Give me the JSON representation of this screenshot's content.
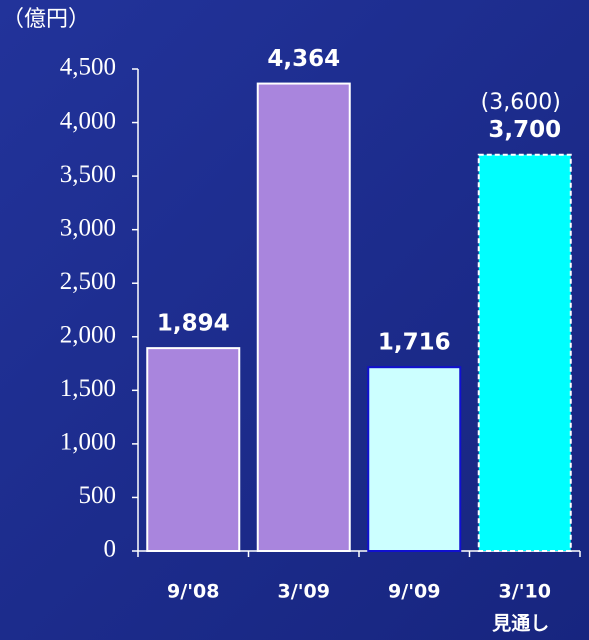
{
  "chart_data": {
    "type": "bar",
    "title": "（億円）",
    "categories": [
      "9/'08",
      "3/'09",
      "9/'09",
      "3/'10"
    ],
    "values": [
      1894,
      4364,
      1716,
      3700
    ],
    "value_labels": [
      "1,894",
      "4,364",
      "1,716",
      "3,700"
    ],
    "colors": [
      "#a985dd",
      "#a985dd",
      "#ccffff",
      "#00ffff"
    ],
    "edge_colors": [
      "#ffffff",
      "#ffffff",
      "#1010d0",
      "#ffffff"
    ],
    "edge_styles": [
      "solid",
      "solid",
      "solid",
      "dashed"
    ],
    "annotations": [
      "(3,600)",
      "見通し"
    ],
    "ylim": [
      0,
      4500
    ],
    "yticks": [
      0,
      500,
      {
        "value": 1000,
        "label": "1,000"
      },
      {
        "value": 1500,
        "label": "1,500"
      },
      {
        "value": 2000,
        "label": "2,000"
      },
      {
        "value": 2500,
        "label": "2,500"
      },
      {
        "value": 3000,
        "label": "3,000"
      },
      {
        "value": 3500,
        "label": "3,500"
      },
      {
        "value": 4000,
        "label": "4,000"
      },
      {
        "value": 4500,
        "label": "4,500"
      }
    ],
    "grid": false
  }
}
